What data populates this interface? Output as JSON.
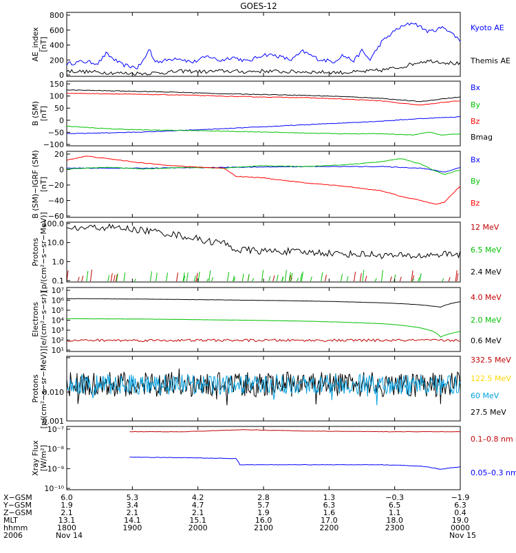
{
  "title": "GOES-12",
  "chart_data": [
    {
      "type": "line",
      "panel": "ae",
      "ylabel": "AE_index\n[nT]",
      "yticks": [
        "800",
        "600",
        "400",
        "200",
        "0"
      ],
      "ylim": [
        0,
        800
      ],
      "series": [
        {
          "name": "Kyoto AE",
          "color": "#0000ff",
          "x_hours": [
            0,
            0.4,
            0.8,
            1.0,
            1.4,
            1.8,
            2.0,
            2.1,
            2.2,
            2.4,
            2.8,
            3.2,
            3.6,
            3.9,
            4.2,
            4.6,
            5.0,
            5.3,
            5.7,
            6.0,
            6.4,
            6.8,
            7.0,
            7.3,
            7.5,
            7.7,
            8.0,
            8.4,
            8.8,
            9.2,
            9.6,
            10.0
          ],
          "values": [
            150,
            180,
            160,
            280,
            140,
            100,
            230,
            360,
            200,
            180,
            230,
            170,
            250,
            190,
            240,
            180,
            270,
            260,
            200,
            310,
            210,
            180,
            260,
            190,
            320,
            200,
            430,
            600,
            680,
            560,
            620,
            450
          ]
        },
        {
          "name": "Themis AE",
          "color": "#000000",
          "x_hours": [
            0,
            0.5,
            1.0,
            1.5,
            2.0,
            2.5,
            3.0,
            3.5,
            4.0,
            4.5,
            5.0,
            5.5,
            6.0,
            6.5,
            7.0,
            7.5,
            8.0,
            8.5,
            9.0,
            9.3,
            9.6,
            10.0
          ],
          "values": [
            60,
            50,
            40,
            30,
            30,
            40,
            60,
            50,
            60,
            50,
            60,
            50,
            50,
            45,
            40,
            50,
            70,
            110,
            180,
            190,
            170,
            150
          ]
        }
      ]
    },
    {
      "type": "line",
      "panel": "b_gsm",
      "ylabel": "B (SM)\n[nT]",
      "yticks": [
        "150",
        "100",
        "50",
        "0",
        "−50",
        "−100"
      ],
      "ylim": [
        -100,
        150
      ],
      "series": [
        {
          "name": "Bx",
          "color": "#0000ff",
          "x_hours": [
            0,
            2,
            4,
            6,
            8,
            9,
            10
          ],
          "values": [
            -55,
            -48,
            -35,
            -20,
            -5,
            5,
            12
          ]
        },
        {
          "name": "By",
          "color": "#00c000",
          "x_hours": [
            0,
            1,
            2,
            3,
            4,
            5,
            6,
            7,
            8,
            8.8,
            9.2,
            9.5,
            10
          ],
          "values": [
            -25,
            -35,
            -40,
            -42,
            -45,
            -48,
            -52,
            -55,
            -55,
            -60,
            -48,
            -60,
            -55
          ]
        },
        {
          "name": "Bz",
          "color": "#ff0000",
          "x_hours": [
            0,
            1,
            2,
            3,
            4,
            5,
            6,
            7,
            8,
            8.5,
            9,
            9.5,
            10
          ],
          "values": [
            105,
            103,
            100,
            98,
            93,
            90,
            88,
            82,
            75,
            65,
            58,
            68,
            75
          ]
        },
        {
          "name": "Bmag",
          "color": "#000000",
          "x_hours": [
            0,
            1,
            2,
            3,
            4,
            5,
            6,
            7,
            8,
            8.5,
            9,
            9.5,
            10
          ],
          "values": [
            118,
            115,
            112,
            108,
            103,
            100,
            97,
            92,
            85,
            78,
            72,
            82,
            90
          ]
        }
      ]
    },
    {
      "type": "line",
      "panel": "b_minus_igrf",
      "ylabel": "B (SM)−IGRF (SM)\n[nT]",
      "yticks": [
        "20",
        "0",
        "−20",
        "−40",
        "−60"
      ],
      "ylim": [
        -60,
        20
      ],
      "series": [
        {
          "name": "Bx",
          "color": "#0000ff",
          "x_hours": [
            0,
            2,
            4,
            6,
            8,
            9,
            9.4,
            9.6,
            10
          ],
          "values": [
            0,
            0,
            1,
            2,
            2,
            0,
            -3,
            -5,
            1
          ]
        },
        {
          "name": "By",
          "color": "#00c000",
          "x_hours": [
            0,
            1,
            2,
            3,
            4,
            5,
            6,
            7,
            8,
            8.5,
            9,
            9.3,
            9.6,
            10
          ],
          "values": [
            -1,
            1,
            -1,
            1,
            0,
            3,
            2,
            4,
            8,
            12,
            5,
            -2,
            -8,
            -2
          ]
        },
        {
          "name": "Bz",
          "color": "#ff0000",
          "x_hours": [
            0,
            0.5,
            1,
            2,
            3,
            4,
            4.3,
            5,
            6,
            7,
            8,
            8.5,
            9,
            9.4,
            9.6,
            10
          ],
          "values": [
            10,
            15,
            12,
            6,
            2,
            0,
            -10,
            -12,
            -18,
            -22,
            -28,
            -35,
            -40,
            -45,
            -42,
            -22
          ]
        }
      ]
    },
    {
      "type": "line",
      "panel": "protons_low",
      "ylabel": "Protons\n[p/(cm²−s−sr−MeV)]",
      "yticks": [
        "100.0",
        "10.0",
        "1.0",
        "0.1"
      ],
      "ylim": [
        0.1,
        100
      ],
      "log": true,
      "series": [
        {
          "name": "12 MeV",
          "color": "#c00000",
          "x_hours": [],
          "values": []
        },
        {
          "name": "6.5 MeV",
          "color": "#00c000",
          "x_hours": [],
          "values": []
        },
        {
          "name": "2.4 MeV",
          "color": "#000000",
          "x_hours": [
            0,
            0.5,
            1,
            1.5,
            2,
            2.5,
            3,
            3.5,
            4,
            4.3,
            4.6,
            5,
            5.5,
            6,
            6.5,
            7,
            7.5,
            8,
            8.5,
            9,
            9.5,
            10
          ],
          "values": [
            45,
            55,
            60,
            50,
            40,
            30,
            20,
            12,
            9,
            4,
            4,
            3.5,
            3.5,
            3,
            3,
            2.5,
            2.5,
            2.2,
            2,
            2,
            2.5,
            2.5
          ]
        }
      ]
    },
    {
      "type": "line",
      "panel": "electrons",
      "ylabel": "Electrons\n[e/(cm²−s−sr)]",
      "yticks": [
        "10⁷",
        "10⁶",
        "10⁵",
        "10⁴",
        "10³",
        "10²",
        "10¹"
      ],
      "ylim": [
        10,
        10000000
      ],
      "log": true,
      "series": [
        {
          "name": "4.0 MeV",
          "color": "#c00000",
          "x_hours": [
            0,
            2,
            4,
            6,
            8,
            10
          ],
          "values": [
            100,
            100,
            100,
            100,
            100,
            100
          ]
        },
        {
          "name": "2.0 MeV",
          "color": "#00c000",
          "x_hours": [
            0,
            2,
            4,
            6,
            8,
            9,
            9.5,
            10
          ],
          "values": [
            12000,
            11000,
            9000,
            7000,
            4000,
            1500,
            200,
            700
          ]
        },
        {
          "name": "0.6 MeV",
          "color": "#000000",
          "x_hours": [
            0,
            2,
            4,
            6,
            8,
            9,
            9.5,
            10
          ],
          "values": [
            1000000,
            900000,
            750000,
            600000,
            400000,
            250000,
            150000,
            500000
          ]
        }
      ]
    },
    {
      "type": "line",
      "panel": "protons_high",
      "ylabel": "Protons\n[p/(cm²−s−sr−MeV)]",
      "yticks": [
        "0.010",
        "0.001"
      ],
      "ylim": [
        0.001,
        0.1
      ],
      "log": true,
      "series": [
        {
          "name": "332.5 MeV",
          "color": "#c00000",
          "x_hours": [],
          "values": []
        },
        {
          "name": "122.5 MeV",
          "color": "#ffd700",
          "x_hours": [],
          "values": []
        },
        {
          "name": "60 MeV",
          "color": "#00a0e0",
          "x_hours": [],
          "values": []
        },
        {
          "name": "27.5 MeV",
          "color": "#000000",
          "x_hours": [],
          "values": []
        }
      ]
    },
    {
      "type": "line",
      "panel": "xray",
      "ylabel": "Xray Flux\n[W/m²]",
      "yticks": [
        "10⁻⁷",
        "10⁻⁸",
        "10⁻⁹",
        "10⁻¹⁰"
      ],
      "ylim": [
        1e-10,
        1e-07
      ],
      "log": true,
      "series": [
        {
          "name": "0.1–0.8 nm",
          "color": "#c00000",
          "x_hours": [
            1.6,
            3,
            4.5,
            6,
            8,
            10
          ],
          "values": [
            6e-08,
            6e-08,
            7.5e-08,
            6.5e-08,
            6e-08,
            6e-08
          ]
        },
        {
          "name": "0.05–0.3 nm",
          "color": "#0000ff",
          "x_hours": [
            1.6,
            3,
            4.3,
            4.4,
            6,
            8,
            9,
            9.5,
            10
          ],
          "values": [
            3.5e-09,
            3.3e-09,
            3e-09,
            1.5e-09,
            1.5e-09,
            1.5e-09,
            1.3e-09,
            9e-10,
            1.2e-09
          ]
        }
      ]
    }
  ],
  "x_axis": {
    "range_hours": [
      0,
      10
    ],
    "ticks_hours": [
      0,
      1.667,
      3.333,
      5,
      6.667,
      8.333,
      10
    ],
    "row_labels": [
      "X−GSM",
      "Y−GSM",
      "Z−GSM",
      "MLT",
      "hhmm",
      "2006"
    ],
    "columns": [
      [
        "6.0",
        "1.9",
        "2.1",
        "13.1",
        "1800",
        "Nov 14"
      ],
      [
        "5.3",
        "3.4",
        "2.1",
        "14.1",
        "1900",
        ""
      ],
      [
        "4.2",
        "4.7",
        "2.1",
        "15.1",
        "2000",
        ""
      ],
      [
        "2.8",
        "5.7",
        "1.9",
        "16.0",
        "2100",
        ""
      ],
      [
        "1.3",
        "6.3",
        "1.6",
        "17.0",
        "2200",
        ""
      ],
      [
        "−0.3",
        "6.5",
        "1.1",
        "18.0",
        "2300",
        ""
      ],
      [
        "−1.9",
        "6.3",
        "0.4",
        "19.0",
        "0000",
        "Nov 15"
      ]
    ]
  }
}
